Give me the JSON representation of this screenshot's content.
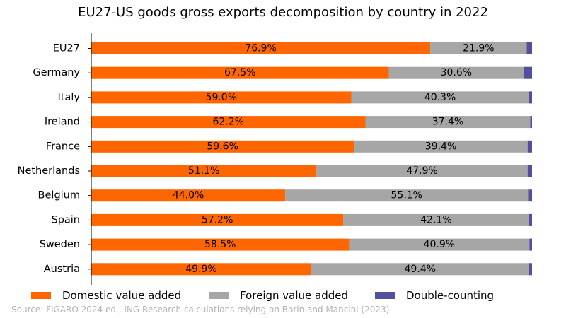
{
  "chart_data": {
    "type": "bar",
    "orientation": "horizontal",
    "stacked": true,
    "title": "EU27-US goods gross exports decomposition by country in 2022",
    "categories": [
      "EU27",
      "Germany",
      "Italy",
      "Ireland",
      "France",
      "Netherlands",
      "Belgium",
      "Spain",
      "Sweden",
      "Austria"
    ],
    "series": [
      {
        "name": "Domestic value added",
        "color": "#ff6600",
        "values": [
          76.9,
          67.5,
          59.0,
          62.2,
          59.6,
          51.1,
          44.0,
          57.2,
          58.5,
          49.9
        ],
        "labels": [
          "76.9%",
          "67.5%",
          "59.0%",
          "62.2%",
          "59.6%",
          "51.1%",
          "44.0%",
          "57.2%",
          "58.5%",
          "49.9%"
        ]
      },
      {
        "name": "Foreign value added",
        "color": "#a6a6a6",
        "values": [
          21.9,
          30.6,
          40.3,
          37.4,
          39.4,
          47.9,
          55.1,
          42.1,
          40.9,
          49.4
        ],
        "labels": [
          "21.9%",
          "30.6%",
          "40.3%",
          "37.4%",
          "39.4%",
          "47.9%",
          "55.1%",
          "42.1%",
          "40.9%",
          "49.4%"
        ]
      },
      {
        "name": "Double-counting",
        "color": "#524f9f",
        "values": [
          1.2,
          1.9,
          0.7,
          0.4,
          1.0,
          1.0,
          0.9,
          0.7,
          0.6,
          0.7
        ],
        "labels": []
      }
    ],
    "xlim": [
      0,
      100
    ],
    "grid": false,
    "legend_position": "bottom"
  },
  "source": "Source: FIGARO 2024 ed., ING Research calculations relying on Borin and Mancini (2023)"
}
